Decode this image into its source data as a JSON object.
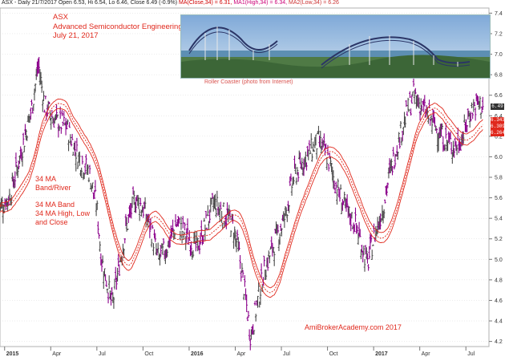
{
  "header": {
    "symbol_info": "ASX - Daily 21/7/2017 Open 6.53, Hi 6.54, Lo 6.46, Close 6.49 (-0.9%)",
    "ma_close": "MA(Close,34) = 6.31,",
    "ma_high": "MA1(High,34) = 6.34,",
    "ma_low": "MA2(Low,34) = 6.26"
  },
  "annotations": {
    "title_block": "ASX\nAdvanced Semiconductor Engineering\nJuly 21, 2017",
    "band_label": "34 MA\nBand/River",
    "band_desc": "34 MA Band\n34 MA High, Low\nand Close",
    "photo_caption": "Roller Coaster (photo from Internet)",
    "credit": "AmiBrokerAcademy.com  2017"
  },
  "price_tags": {
    "last": "6.49",
    "ma_high": "6.343",
    "ma_close": "6.309",
    "ma_low": "6.264"
  },
  "colors": {
    "bars": "#4a4a4a",
    "down_bars": "#8b008b",
    "ma": "#e0281c",
    "annotation": "#e0281c",
    "grid": "#d9d9d9"
  },
  "chart_data": {
    "type": "line",
    "title": "",
    "xlabel": "",
    "ylabel": "",
    "ylim": [
      4.15,
      7.45
    ],
    "y_ticks": [
      "4.2",
      "4.4",
      "4.6",
      "4.8",
      "5.0",
      "5.2",
      "5.4",
      "5.6",
      "5.8",
      "6.0",
      "6.2",
      "6.4",
      "6.6",
      "6.8",
      "7.0",
      "7.2",
      "7.4"
    ],
    "x_ticks": [
      "2015",
      "Apr",
      "Jul",
      "Oct",
      "2016",
      "Apr",
      "Jul",
      "Oct",
      "2017",
      "Apr",
      "Jul"
    ],
    "x_tick_pos": [
      0.0,
      3,
      6,
      9,
      12,
      15,
      18,
      21,
      24,
      27,
      30
    ],
    "x_range": [
      -0.3,
      31.5
    ],
    "price_path": [
      [
        -0.4,
        5.5
      ],
      [
        0.3,
        5.6
      ],
      [
        1.0,
        6.0
      ],
      [
        1.8,
        6.5
      ],
      [
        2.2,
        6.9
      ],
      [
        2.6,
        6.5
      ],
      [
        3.3,
        6.35
      ],
      [
        4.0,
        6.3
      ],
      [
        4.8,
        6.0
      ],
      [
        5.5,
        5.85
      ],
      [
        6.0,
        5.5
      ],
      [
        6.3,
        5.0
      ],
      [
        6.7,
        4.75
      ],
      [
        7.0,
        4.55
      ],
      [
        7.4,
        4.9
      ],
      [
        7.9,
        5.3
      ],
      [
        8.5,
        5.6
      ],
      [
        9.0,
        5.5
      ],
      [
        9.5,
        5.3
      ],
      [
        10.0,
        5.0
      ],
      [
        10.5,
        5.1
      ],
      [
        11.2,
        5.35
      ],
      [
        12.0,
        5.2
      ],
      [
        12.5,
        5.1
      ],
      [
        13.0,
        5.3
      ],
      [
        13.6,
        5.55
      ],
      [
        14.2,
        5.45
      ],
      [
        14.8,
        5.35
      ],
      [
        15.2,
        5.1
      ],
      [
        15.6,
        4.7
      ],
      [
        16.0,
        4.25
      ],
      [
        16.4,
        4.55
      ],
      [
        16.9,
        4.9
      ],
      [
        17.4,
        5.1
      ],
      [
        18.2,
        5.4
      ],
      [
        18.8,
        5.8
      ],
      [
        19.6,
        6.0
      ],
      [
        20.4,
        6.15
      ],
      [
        21.0,
        6.0
      ],
      [
        21.6,
        5.7
      ],
      [
        22.3,
        5.45
      ],
      [
        22.8,
        5.35
      ],
      [
        23.3,
        5.1
      ],
      [
        23.6,
        4.95
      ],
      [
        24.0,
        5.2
      ],
      [
        24.6,
        5.5
      ],
      [
        25.0,
        5.8
      ],
      [
        25.5,
        6.1
      ],
      [
        26.0,
        6.35
      ],
      [
        26.6,
        6.6
      ],
      [
        27.3,
        6.45
      ],
      [
        28.0,
        6.3
      ],
      [
        28.7,
        6.15
      ],
      [
        29.3,
        6.1
      ],
      [
        29.8,
        6.2
      ],
      [
        30.3,
        6.45
      ],
      [
        30.8,
        6.52
      ],
      [
        31.1,
        6.49
      ]
    ],
    "series": [
      {
        "name": "MA(Close,34)",
        "values_note": "computed as 34-period moving average"
      },
      {
        "name": "MA1(High,34)",
        "values_note": "upper band"
      },
      {
        "name": "MA2(Low,34)",
        "values_note": "lower band"
      }
    ],
    "grid": true,
    "legend": "none"
  }
}
